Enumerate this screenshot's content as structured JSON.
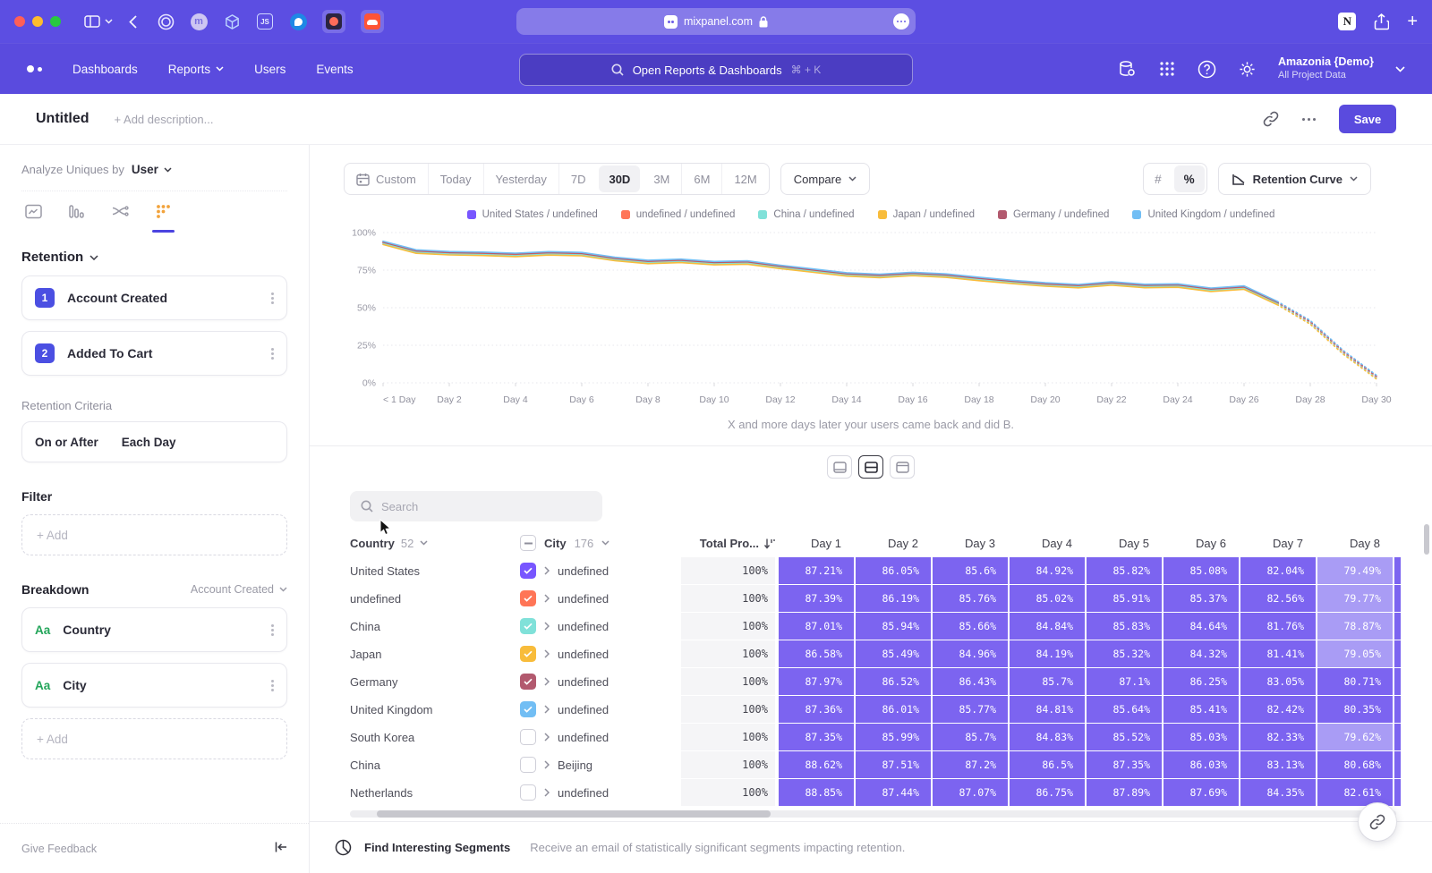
{
  "colors": {
    "accent": "#5a4bde",
    "cell": "#7c64f0",
    "cell_light": "#a99cf5"
  },
  "browser": {
    "url": "mixpanel.com"
  },
  "nav": {
    "menu": [
      {
        "label": "Dashboards",
        "caret": false
      },
      {
        "label": "Reports",
        "caret": true
      },
      {
        "label": "Users",
        "caret": false
      },
      {
        "label": "Events",
        "caret": false
      }
    ],
    "search_placeholder": "Open Reports & Dashboards",
    "search_shortcut": "⌘ + K",
    "project_name": "Amazonia {Demo}",
    "project_scope": "All Project Data"
  },
  "header": {
    "title": "Untitled",
    "description_placeholder": "+ Add description...",
    "save_label": "Save"
  },
  "sidebar": {
    "analyze_label": "Analyze Uniques by",
    "analyze_value": "User",
    "section_title": "Retention",
    "steps": [
      {
        "num": "1",
        "label": "Account Created"
      },
      {
        "num": "2",
        "label": "Added To Cart"
      }
    ],
    "criteria_label": "Retention Criteria",
    "criteria_left": "On or After",
    "criteria_right": "Each Day",
    "filter_label": "Filter",
    "add_label": "+ Add",
    "breakdown_label": "Breakdown",
    "breakdown_event": "Account Created",
    "breakdowns": [
      {
        "badge": "Aa",
        "label": "Country"
      },
      {
        "badge": "Aa",
        "label": "City"
      }
    ],
    "feedback_label": "Give Feedback"
  },
  "controls": {
    "date_ranges": [
      {
        "label": "Custom",
        "icon": "calendar",
        "active": false
      },
      {
        "label": "Today",
        "active": false
      },
      {
        "label": "Yesterday",
        "active": false
      },
      {
        "label": "7D",
        "active": false
      },
      {
        "label": "30D",
        "active": true
      },
      {
        "label": "3M",
        "active": false
      },
      {
        "label": "6M",
        "active": false
      },
      {
        "label": "12M",
        "active": false
      }
    ],
    "compare_label": "Compare",
    "unit_toggle": [
      "#",
      "%"
    ],
    "unit_active": "%",
    "view_label": "Retention Curve"
  },
  "chart_data": {
    "type": "line",
    "title": "",
    "xlabel": "",
    "ylabel": "",
    "ylim": [
      0,
      100
    ],
    "y_ticks": [
      0,
      25,
      50,
      75,
      100
    ],
    "x_tick_positions": [
      0,
      2,
      4,
      6,
      8,
      10,
      12,
      14,
      16,
      18,
      20,
      22,
      24,
      26,
      28,
      30
    ],
    "x_tick_labels": [
      "< 1 Day",
      "Day 2",
      "Day 4",
      "Day 6",
      "Day 8",
      "Day 10",
      "Day 12",
      "Day 14",
      "Day 16",
      "Day 18",
      "Day 20",
      "Day 22",
      "Day 24",
      "Day 26",
      "Day 28",
      "Day 30"
    ],
    "dashed_from_index": 27,
    "legend_position": "top",
    "grid": true,
    "series": [
      {
        "name": "United States / undefined",
        "color": "#7856FF",
        "values": [
          93.0,
          87.2,
          86.1,
          85.7,
          85.0,
          86.0,
          85.5,
          82.3,
          80.3,
          81.0,
          79.5,
          79.9,
          77.0,
          74.5,
          72.0,
          71.0,
          72.3,
          71.2,
          69.0,
          67.0,
          65.3,
          64.2,
          66.0,
          64.3,
          64.6,
          61.8,
          63.2,
          53.0,
          40.0,
          20.0,
          3.5
        ]
      },
      {
        "name": "undefined / undefined",
        "color": "#FF7557",
        "values": [
          93.3,
          87.5,
          86.4,
          86.0,
          85.3,
          86.3,
          85.8,
          82.6,
          80.6,
          81.3,
          79.8,
          80.2,
          77.3,
          74.8,
          72.3,
          71.3,
          72.6,
          71.5,
          69.3,
          67.3,
          65.6,
          64.5,
          66.3,
          64.6,
          64.9,
          62.1,
          63.5,
          53.3,
          40.5,
          20.5,
          4.0
        ]
      },
      {
        "name": "China / undefined",
        "color": "#80E1D9",
        "values": [
          92.6,
          86.8,
          85.7,
          85.3,
          84.6,
          85.6,
          85.1,
          81.9,
          79.9,
          80.6,
          79.1,
          79.5,
          76.6,
          74.1,
          71.6,
          70.6,
          71.9,
          70.8,
          68.6,
          66.6,
          64.9,
          63.8,
          65.6,
          63.9,
          64.2,
          61.4,
          62.8,
          52.6,
          39.5,
          19.5,
          3.0
        ]
      },
      {
        "name": "Japan / undefined",
        "color": "#F8BC3B",
        "values": [
          92.0,
          86.2,
          85.1,
          84.7,
          84.0,
          85.0,
          84.5,
          81.3,
          79.3,
          80.0,
          78.5,
          78.9,
          76.0,
          73.5,
          71.0,
          70.0,
          71.3,
          70.2,
          68.0,
          66.0,
          64.3,
          63.2,
          65.0,
          63.3,
          63.6,
          60.8,
          62.2,
          52.0,
          39.0,
          19.0,
          2.5
        ]
      },
      {
        "name": "Germany / undefined",
        "color": "#B2596E",
        "values": [
          93.7,
          87.9,
          86.8,
          86.4,
          85.7,
          86.7,
          86.2,
          83.0,
          81.0,
          81.7,
          80.2,
          80.6,
          77.7,
          75.2,
          72.7,
          71.7,
          73.0,
          71.9,
          69.7,
          67.7,
          66.0,
          64.9,
          66.7,
          65.0,
          65.3,
          62.5,
          63.9,
          53.7,
          41.0,
          21.0,
          4.5
        ]
      },
      {
        "name": "United Kingdom / undefined",
        "color": "#72BEF4",
        "values": [
          94.3,
          88.5,
          87.4,
          87.0,
          86.3,
          87.3,
          86.8,
          83.6,
          81.6,
          82.3,
          80.8,
          81.2,
          78.3,
          75.8,
          73.3,
          72.3,
          73.6,
          72.5,
          70.3,
          68.3,
          66.6,
          65.5,
          67.3,
          65.6,
          65.9,
          63.1,
          64.5,
          54.3,
          41.5,
          21.5,
          5.0
        ]
      }
    ]
  },
  "caption": "X and more days later your users came back and did B.",
  "table": {
    "search_placeholder": "Search",
    "col1": {
      "label": "Country",
      "count": "52"
    },
    "col2": {
      "label": "City",
      "count": "176"
    },
    "col3": {
      "label": "Total Pro..."
    },
    "day_headers": [
      "Day 1",
      "Day 2",
      "Day 3",
      "Day 4",
      "Day 5",
      "Day 6",
      "Day 7",
      "Day 8"
    ],
    "rows": [
      {
        "country": "United States",
        "checked": true,
        "color": "#7856FF",
        "city": "undefined",
        "total": "100%",
        "values": [
          "87.21%",
          "86.05%",
          "85.6%",
          "84.92%",
          "85.82%",
          "85.08%",
          "82.04%",
          "79.49%"
        ]
      },
      {
        "country": "undefined",
        "checked": true,
        "color": "#FF7557",
        "city": "undefined",
        "total": "100%",
        "values": [
          "87.39%",
          "86.19%",
          "85.76%",
          "85.02%",
          "85.91%",
          "85.37%",
          "82.56%",
          "79.77%"
        ]
      },
      {
        "country": "China",
        "checked": true,
        "color": "#80E1D9",
        "city": "undefined",
        "total": "100%",
        "values": [
          "87.01%",
          "85.94%",
          "85.66%",
          "84.84%",
          "85.83%",
          "84.64%",
          "81.76%",
          "78.87%"
        ]
      },
      {
        "country": "Japan",
        "checked": true,
        "color": "#F8BC3B",
        "city": "undefined",
        "total": "100%",
        "values": [
          "86.58%",
          "85.49%",
          "84.96%",
          "84.19%",
          "85.32%",
          "84.32%",
          "81.41%",
          "79.05%"
        ]
      },
      {
        "country": "Germany",
        "checked": true,
        "color": "#B2596E",
        "city": "undefined",
        "total": "100%",
        "values": [
          "87.97%",
          "86.52%",
          "86.43%",
          "85.7%",
          "87.1%",
          "86.25%",
          "83.05%",
          "80.71%"
        ]
      },
      {
        "country": "United Kingdom",
        "checked": true,
        "color": "#72BEF4",
        "city": "undefined",
        "total": "100%",
        "values": [
          "87.36%",
          "86.01%",
          "85.77%",
          "84.81%",
          "85.64%",
          "85.41%",
          "82.42%",
          "80.35%"
        ]
      },
      {
        "country": "South Korea",
        "checked": false,
        "color": null,
        "city": "undefined",
        "total": "100%",
        "values": [
          "87.35%",
          "85.99%",
          "85.7%",
          "84.83%",
          "85.52%",
          "85.03%",
          "82.33%",
          "79.62%"
        ]
      },
      {
        "country": "China",
        "checked": false,
        "color": null,
        "city": "Beijing",
        "total": "100%",
        "values": [
          "88.62%",
          "87.51%",
          "87.2%",
          "86.5%",
          "87.35%",
          "86.03%",
          "83.13%",
          "80.68%"
        ]
      },
      {
        "country": "Netherlands",
        "checked": false,
        "color": null,
        "city": "undefined",
        "total": "100%",
        "values": [
          "88.85%",
          "87.44%",
          "87.07%",
          "86.75%",
          "87.89%",
          "87.69%",
          "84.35%",
          "82.61%"
        ]
      }
    ]
  },
  "footer": {
    "title": "Find Interesting Segments",
    "subtitle": "Receive an email of statistically significant segments impacting retention."
  }
}
